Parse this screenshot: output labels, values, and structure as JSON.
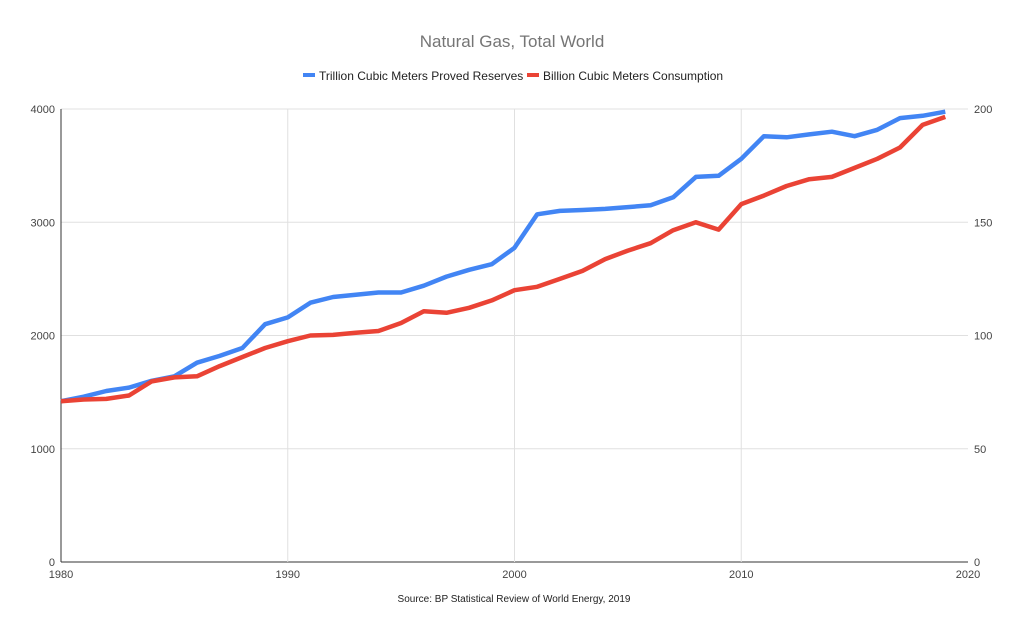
{
  "chart_data": {
    "type": "line",
    "title": "Natural Gas, Total World",
    "source": "Source: BP Statistical Review of World Energy, 2019",
    "legend_position": "top",
    "grid": true,
    "x": [
      1980,
      1981,
      1982,
      1983,
      1984,
      1985,
      1986,
      1987,
      1988,
      1989,
      1990,
      1991,
      1992,
      1993,
      1994,
      1995,
      1996,
      1997,
      1998,
      1999,
      2000,
      2001,
      2002,
      2003,
      2004,
      2005,
      2006,
      2007,
      2008,
      2009,
      2010,
      2011,
      2012,
      2013,
      2014,
      2015,
      2016,
      2017,
      2018,
      2019
    ],
    "xlim": [
      1980,
      2020
    ],
    "x_ticks": [
      "1980",
      "1990",
      "2000",
      "2010",
      "2020"
    ],
    "left_axis": {
      "ylim": [
        0,
        4000
      ],
      "ticks": [
        "0",
        "1000",
        "2000",
        "3000",
        "4000"
      ]
    },
    "right_axis": {
      "ylim": [
        0,
        200
      ],
      "ticks": [
        "0",
        "50",
        "100",
        "150",
        "200"
      ]
    },
    "series": [
      {
        "name": "Trillion Cubic Meters Proved Reserves",
        "color": "#4285f4",
        "axis": "right",
        "values": [
          71,
          73,
          75.5,
          77,
          80,
          82,
          88,
          91,
          94.5,
          105,
          108,
          114.5,
          117,
          118,
          119,
          119,
          122,
          126,
          129,
          131.5,
          138.7,
          153.5,
          155,
          155.4,
          155.9,
          156.7,
          157.5,
          161,
          170,
          170.5,
          178,
          188,
          187.5,
          188.8,
          190,
          188,
          190.8,
          196,
          197,
          198.8
        ]
      },
      {
        "name": "Billion Cubic Meters Consumption",
        "color": "#ea4335",
        "axis": "left",
        "values": [
          1420,
          1435,
          1440,
          1470,
          1595,
          1630,
          1640,
          1730,
          1810,
          1890,
          1950,
          2000,
          2005,
          2025,
          2040,
          2110,
          2215,
          2200,
          2245,
          2310,
          2400,
          2430,
          2500,
          2570,
          2675,
          2750,
          2815,
          2930,
          3000,
          2935,
          3160,
          3235,
          3320,
          3380,
          3400,
          3480,
          3560,
          3660,
          3860,
          3930
        ]
      }
    ]
  }
}
